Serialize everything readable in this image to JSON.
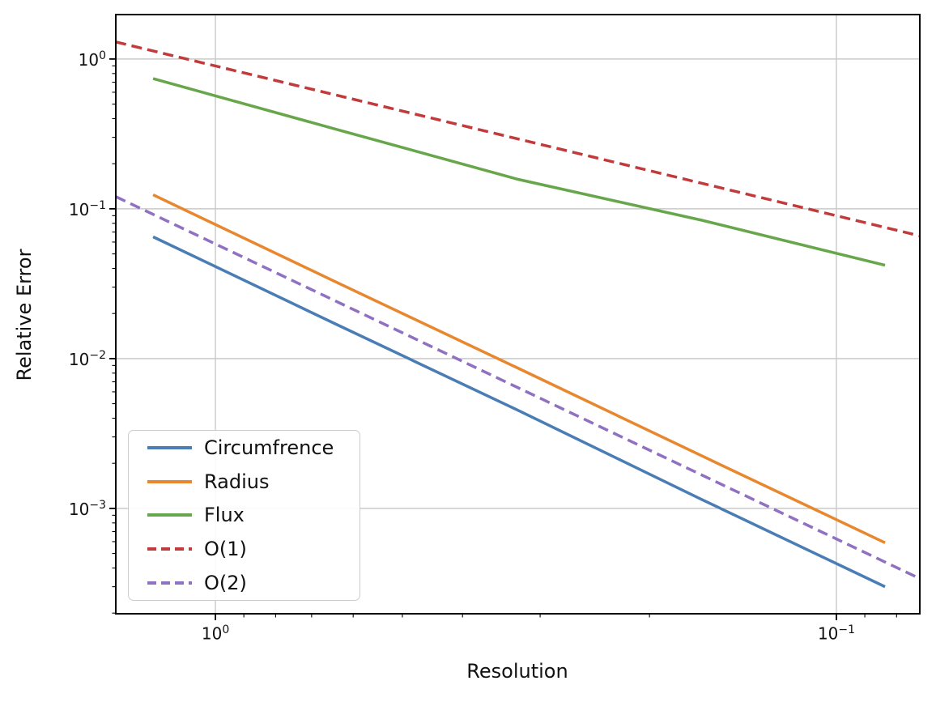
{
  "chart_data": {
    "type": "line",
    "title": "",
    "xlabel": "Resolution",
    "ylabel": "Relative Error",
    "grid": "major",
    "grid_color": "#c9c9c9",
    "spine_color": "#000000",
    "background_color": "#ffffff",
    "legend_position": "lower left",
    "x_axis": {
      "scale": "log",
      "inverted": true,
      "max": 1.447,
      "min": 0.0734,
      "major_ticks": [
        {
          "value": 1,
          "base": "10",
          "exp": "0"
        },
        {
          "value": 0.1,
          "base": "10",
          "exp": "−1"
        }
      ]
    },
    "y_axis": {
      "scale": "log",
      "inverted": false,
      "max": 1.98,
      "min": 0.000198,
      "major_ticks": [
        {
          "value": 1,
          "base": "10",
          "exp": "0"
        },
        {
          "value": 0.1,
          "base": "10",
          "exp": "−1"
        },
        {
          "value": 0.01,
          "base": "10",
          "exp": "−2"
        },
        {
          "value": 0.001,
          "base": "10",
          "exp": "−3"
        }
      ]
    },
    "series": [
      {
        "name": "Circumfrence",
        "color": "#4a7db5",
        "linestyle": "solid",
        "x": [
          1.26,
          0.64,
          0.325,
          0.165,
          0.0835
        ],
        "y": [
          0.065,
          0.017,
          0.0045,
          0.00115,
          0.0003
        ]
      },
      {
        "name": "Radius",
        "color": "#e8872e",
        "linestyle": "solid",
        "x": [
          1.26,
          0.64,
          0.325,
          0.165,
          0.0835
        ],
        "y": [
          0.124,
          0.0325,
          0.0086,
          0.00225,
          0.00059
        ]
      },
      {
        "name": "Flux",
        "color": "#67a64b",
        "linestyle": "solid",
        "x": [
          1.26,
          0.64,
          0.325,
          0.165,
          0.0835
        ],
        "y": [
          0.74,
          0.34,
          0.157,
          0.084,
          0.042
        ]
      },
      {
        "name": "O(1)",
        "color": "#c23b3c",
        "linestyle": "dashed",
        "x": [
          1.447,
          0.0734
        ],
        "y": [
          1.3,
          0.066
        ]
      },
      {
        "name": "O(2)",
        "color": "#9070c1",
        "linestyle": "dashed",
        "x": [
          1.447,
          0.0734
        ],
        "y": [
          0.1206,
          0.00034
        ]
      }
    ]
  }
}
